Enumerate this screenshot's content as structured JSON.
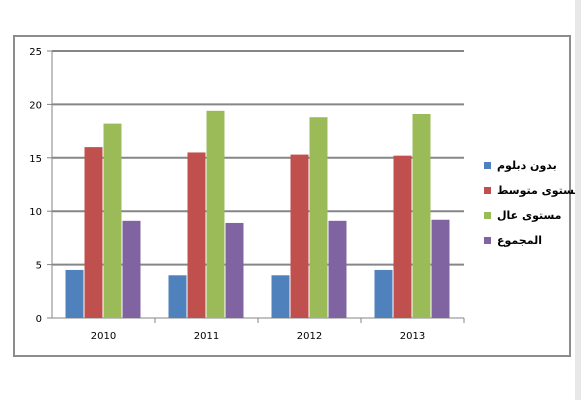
{
  "chart_data": {
    "type": "bar",
    "categories": [
      "2010",
      "2011",
      "2012",
      "2013"
    ],
    "series": [
      {
        "name": "بدون دبلوم",
        "color": "#4f81bd",
        "values": [
          4.5,
          4.0,
          4.0,
          4.5
        ]
      },
      {
        "name": "مستوى متوسط",
        "color": "#c0504d",
        "values": [
          16.0,
          15.5,
          15.3,
          15.2
        ]
      },
      {
        "name": "مستوى عال",
        "color": "#9bbb59",
        "values": [
          18.2,
          19.4,
          18.8,
          19.1
        ]
      },
      {
        "name": "المجموع",
        "color": "#8064a2",
        "values": [
          9.1,
          8.9,
          9.1,
          9.2
        ]
      }
    ],
    "yticks": [
      "0",
      "5",
      "10",
      "15",
      "20",
      "25"
    ],
    "ylim": [
      0,
      25
    ],
    "grid": true,
    "legend_position": "right"
  }
}
